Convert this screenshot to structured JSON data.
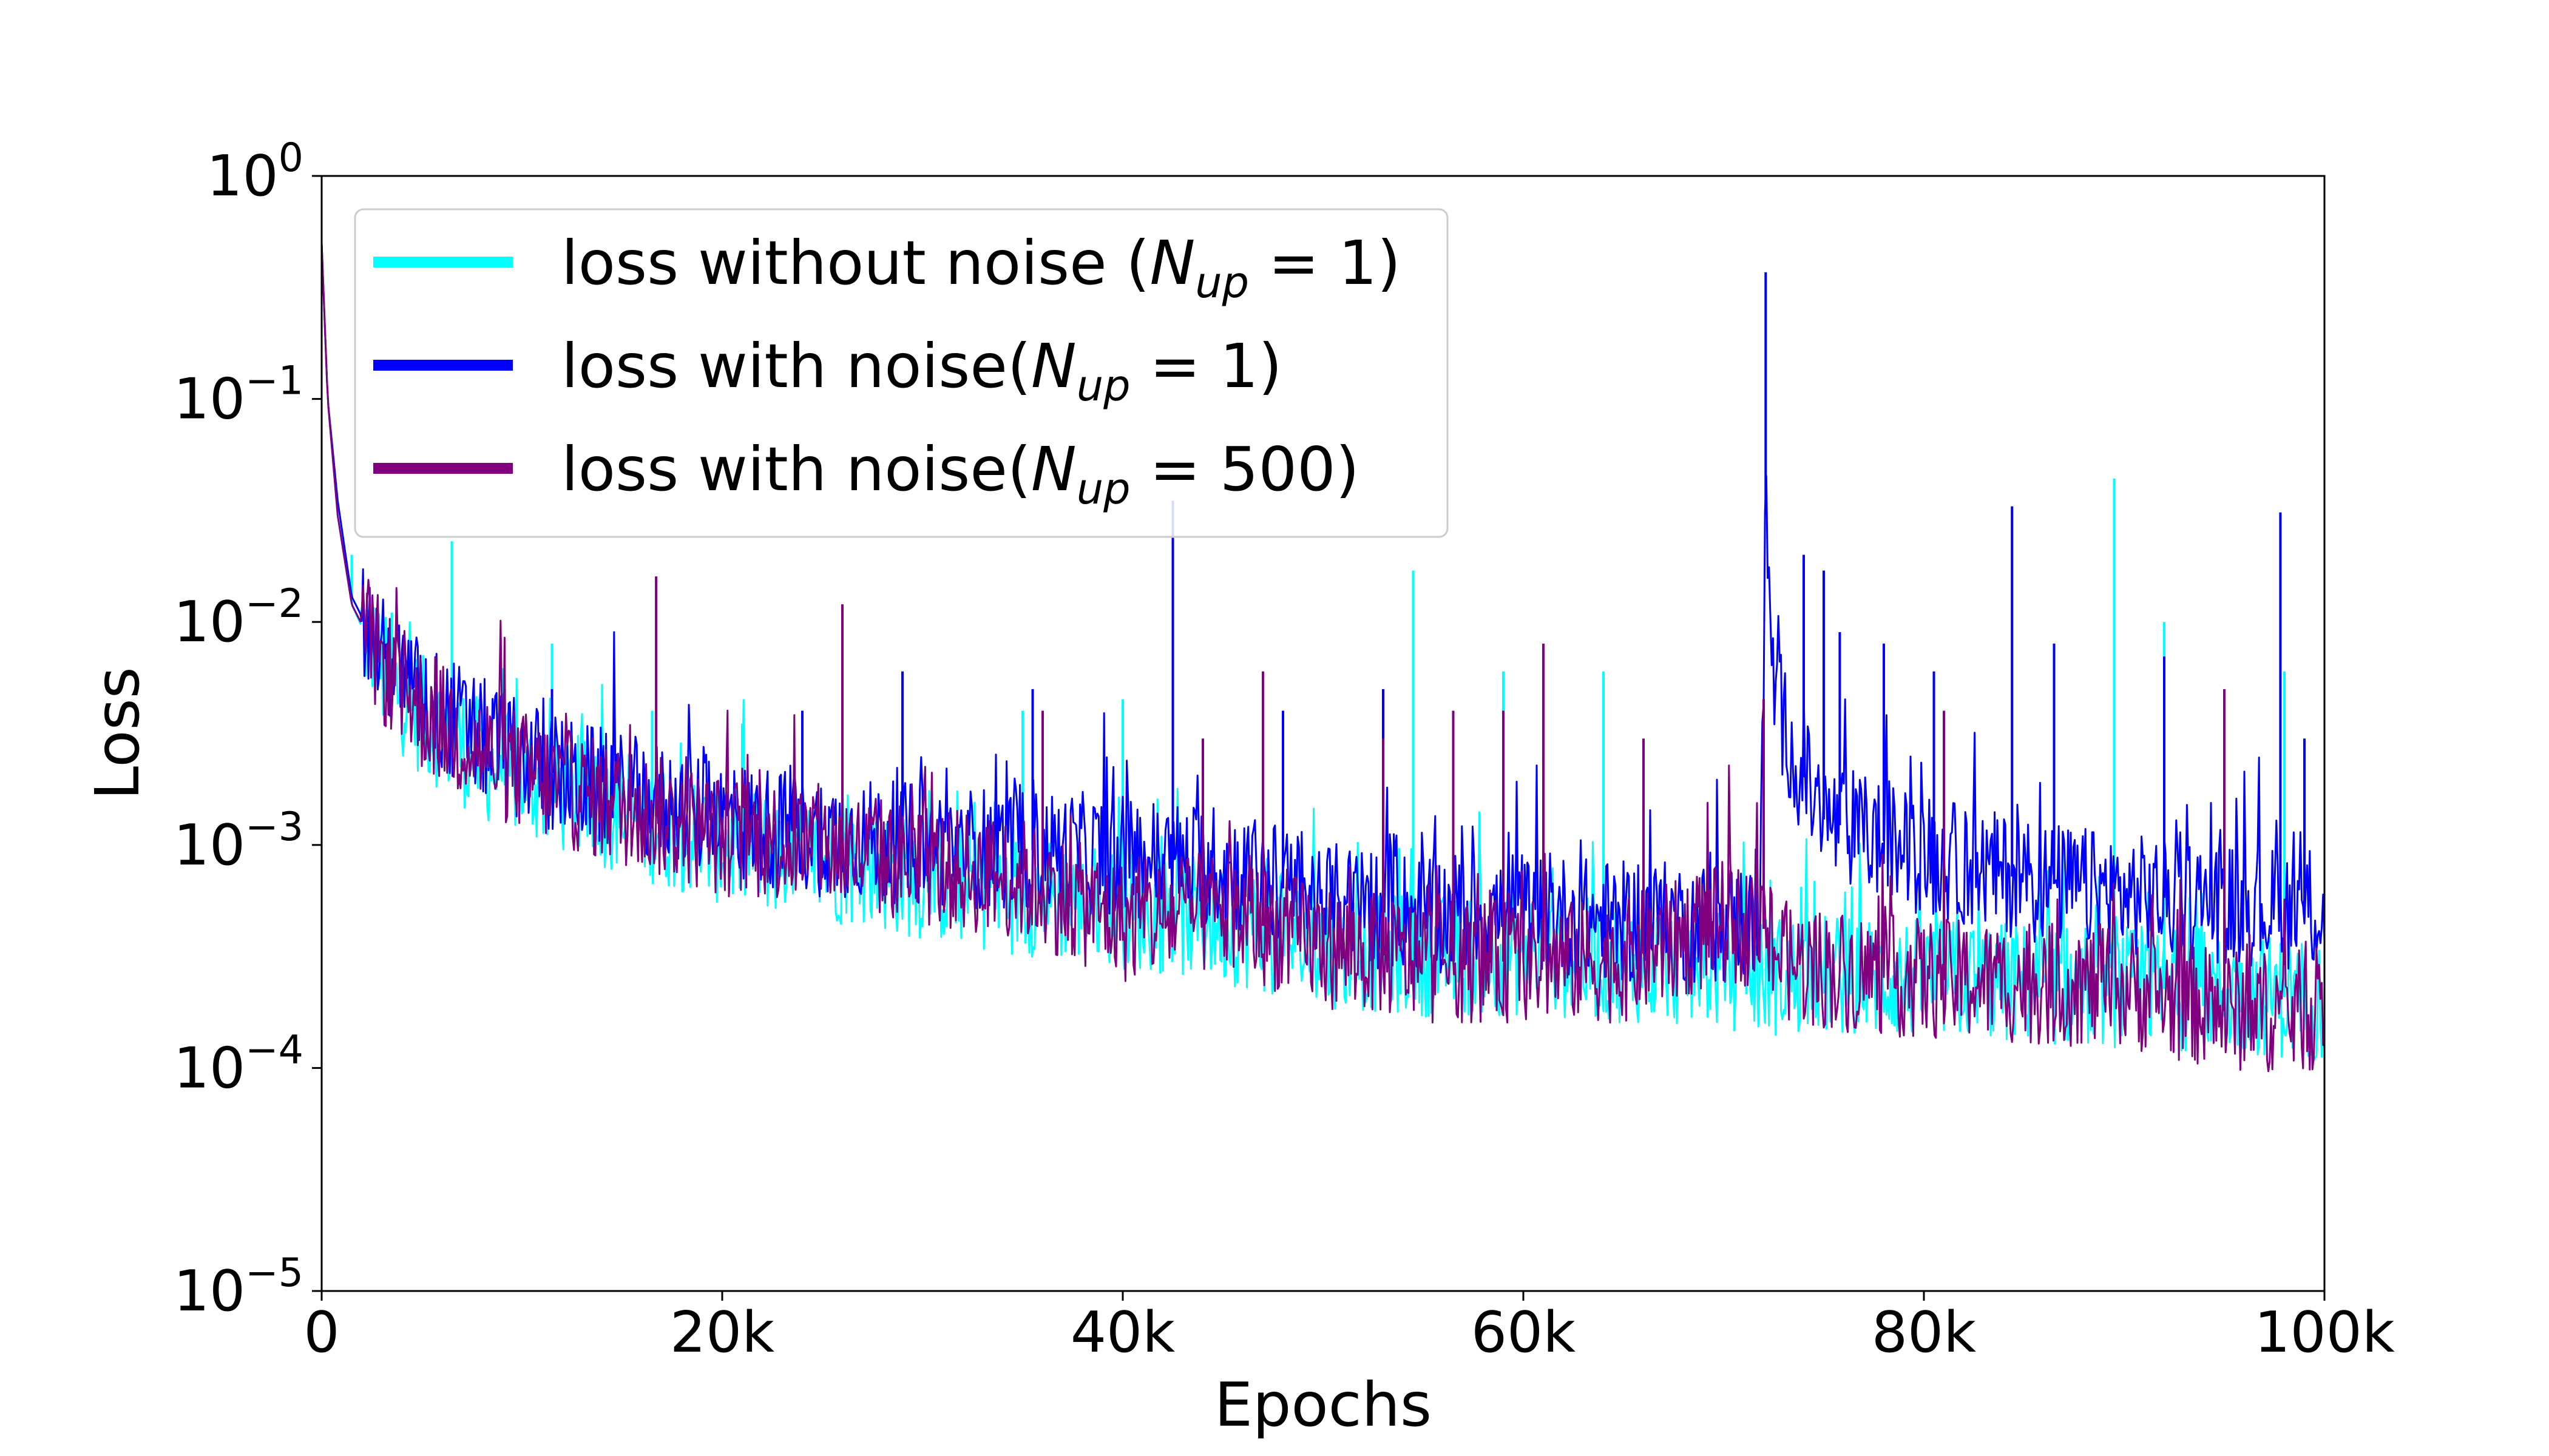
{
  "chart_data": {
    "type": "line",
    "xlabel": "Epochs",
    "ylabel": "Loss",
    "x_range": [
      0,
      100000
    ],
    "y_range": [
      1e-05,
      1
    ],
    "y_scale": "log",
    "grid": false,
    "legend_position": "top-left",
    "x_ticks": [
      {
        "value": 0,
        "label": "0"
      },
      {
        "value": 20000,
        "label": "20k"
      },
      {
        "value": 40000,
        "label": "40k"
      },
      {
        "value": 60000,
        "label": "60k"
      },
      {
        "value": 80000,
        "label": "80k"
      },
      {
        "value": 100000,
        "label": "100k"
      }
    ],
    "y_ticks": [
      {
        "value": 1,
        "base": "10",
        "exp": "0"
      },
      {
        "value": 0.1,
        "base": "10",
        "exp": "−1"
      },
      {
        "value": 0.01,
        "base": "10",
        "exp": "−2"
      },
      {
        "value": 0.001,
        "base": "10",
        "exp": "−3"
      },
      {
        "value": 0.0001,
        "base": "10",
        "exp": "−4"
      },
      {
        "value": 1e-05,
        "base": "10",
        "exp": "−5"
      }
    ],
    "series": [
      {
        "name": "loss without noise (N_up = 1)",
        "legend": {
          "prefix": "loss without noise (",
          "sym": "N",
          "sub": "up",
          "suffix": " = 1)"
        },
        "color": "#00FFFF",
        "points": [
          [
            0,
            0.5
          ],
          [
            300,
            0.1
          ],
          [
            800,
            0.03
          ],
          [
            1500,
            0.012
          ],
          [
            3000,
            0.006
          ],
          [
            5000,
            0.0038
          ],
          [
            8000,
            0.0024
          ],
          [
            12000,
            0.0017
          ],
          [
            16000,
            0.0013
          ],
          [
            20000,
            0.001
          ],
          [
            25000,
            0.00085
          ],
          [
            30000,
            0.0007
          ],
          [
            35000,
            0.0006
          ],
          [
            40000,
            0.00052
          ],
          [
            45000,
            0.00045
          ],
          [
            50000,
            0.00035
          ],
          [
            55000,
            0.00032
          ],
          [
            60000,
            0.00032
          ],
          [
            65000,
            0.0003
          ],
          [
            70000,
            0.00028
          ],
          [
            72000,
            0.00026
          ],
          [
            75000,
            0.00026
          ],
          [
            80000,
            0.00025
          ],
          [
            85000,
            0.00024
          ],
          [
            90000,
            0.00023
          ],
          [
            95000,
            0.00022
          ],
          [
            100000,
            0.0002
          ]
        ],
        "spikes": [
          [
            1500,
            0.02
          ],
          [
            2500,
            0.013
          ],
          [
            3500,
            0.011
          ],
          [
            6500,
            0.023
          ],
          [
            11500,
            0.008
          ],
          [
            16500,
            0.004
          ],
          [
            21000,
            0.0035
          ],
          [
            26000,
            0.003
          ],
          [
            35000,
            0.004
          ],
          [
            40000,
            0.0045
          ],
          [
            54500,
            0.017
          ],
          [
            59000,
            0.006
          ],
          [
            64000,
            0.006
          ],
          [
            89500,
            0.044
          ],
          [
            92000,
            0.01
          ],
          [
            98000,
            0.006
          ]
        ]
      },
      {
        "name": "loss with noise(N_up = 1)",
        "legend": {
          "prefix": "loss with noise(",
          "sym": "N",
          "sub": "up",
          "suffix": " = 1)"
        },
        "color": "#0000FF",
        "points": [
          [
            0,
            0.5
          ],
          [
            300,
            0.1
          ],
          [
            800,
            0.035
          ],
          [
            1500,
            0.013
          ],
          [
            3000,
            0.007
          ],
          [
            5000,
            0.0045
          ],
          [
            8000,
            0.003
          ],
          [
            12000,
            0.002
          ],
          [
            16000,
            0.0016
          ],
          [
            20000,
            0.0013
          ],
          [
            25000,
            0.0011
          ],
          [
            30000,
            0.001
          ],
          [
            35000,
            0.00095
          ],
          [
            40000,
            0.0009
          ],
          [
            45000,
            0.0008
          ],
          [
            50000,
            0.00055
          ],
          [
            55000,
            0.0005
          ],
          [
            60000,
            0.0005
          ],
          [
            65000,
            0.00045
          ],
          [
            70000,
            0.00045
          ],
          [
            71800,
            0.00045
          ],
          [
            72100,
            0.03
          ],
          [
            72500,
            0.005
          ],
          [
            73500,
            0.0025
          ],
          [
            75000,
            0.0013
          ],
          [
            80000,
            0.0009
          ],
          [
            85000,
            0.0007
          ],
          [
            90000,
            0.0006
          ],
          [
            95000,
            0.00055
          ],
          [
            100000,
            0.0005
          ]
        ],
        "spikes": [
          [
            11500,
            0.005
          ],
          [
            24000,
            0.004
          ],
          [
            29000,
            0.006
          ],
          [
            35500,
            0.005
          ],
          [
            42500,
            0.035
          ],
          [
            48000,
            0.004
          ],
          [
            53000,
            0.005
          ],
          [
            61000,
            0.004
          ],
          [
            72100,
            0.37
          ],
          [
            74000,
            0.02
          ],
          [
            75000,
            0.017
          ],
          [
            75800,
            0.009
          ],
          [
            78000,
            0.008
          ],
          [
            80500,
            0.006
          ],
          [
            84400,
            0.033
          ],
          [
            86500,
            0.008
          ],
          [
            92000,
            0.007
          ],
          [
            97800,
            0.031
          ],
          [
            99000,
            0.003
          ]
        ]
      },
      {
        "name": "loss with noise(N_up = 500)",
        "legend": {
          "prefix": "loss with noise(",
          "sym": "N",
          "sub": "up",
          "suffix": " = 500)"
        },
        "color": "#800080",
        "points": [
          [
            0,
            0.5
          ],
          [
            300,
            0.1
          ],
          [
            800,
            0.03
          ],
          [
            1500,
            0.012
          ],
          [
            3000,
            0.0065
          ],
          [
            5000,
            0.004
          ],
          [
            8000,
            0.0026
          ],
          [
            12000,
            0.0018
          ],
          [
            16000,
            0.0014
          ],
          [
            20000,
            0.0011
          ],
          [
            25000,
            0.001
          ],
          [
            30000,
            0.0008
          ],
          [
            35000,
            0.0007
          ],
          [
            40000,
            0.00045
          ],
          [
            45000,
            0.0005
          ],
          [
            50000,
            0.00035
          ],
          [
            55000,
            0.0003
          ],
          [
            60000,
            0.0003
          ],
          [
            65000,
            0.0003
          ],
          [
            70000,
            0.00045
          ],
          [
            72000,
            0.00042
          ],
          [
            73000,
            0.0003
          ],
          [
            75000,
            0.00028
          ],
          [
            80000,
            0.00025
          ],
          [
            85000,
            0.00024
          ],
          [
            90000,
            0.00023
          ],
          [
            95000,
            0.00018
          ],
          [
            100000,
            0.00018
          ]
        ],
        "spikes": [
          [
            16700,
            0.016
          ],
          [
            26000,
            0.012
          ],
          [
            36000,
            0.004
          ],
          [
            44000,
            0.003
          ],
          [
            47000,
            0.006
          ],
          [
            53000,
            0.003
          ],
          [
            56500,
            0.004
          ],
          [
            59000,
            0.004
          ],
          [
            61000,
            0.008
          ],
          [
            66000,
            0.003
          ],
          [
            72000,
            0.0045
          ],
          [
            81000,
            0.004
          ],
          [
            95000,
            0.005
          ]
        ]
      }
    ]
  }
}
